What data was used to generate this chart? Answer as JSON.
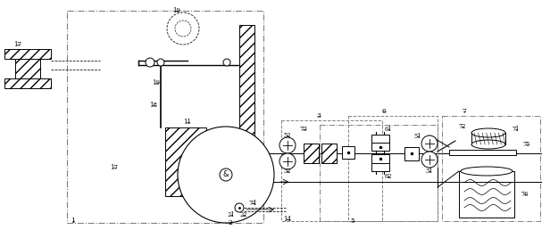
{
  "bg": "#ffffff",
  "figsize": [
    6.07,
    2.58
  ],
  "dpi": 100
}
